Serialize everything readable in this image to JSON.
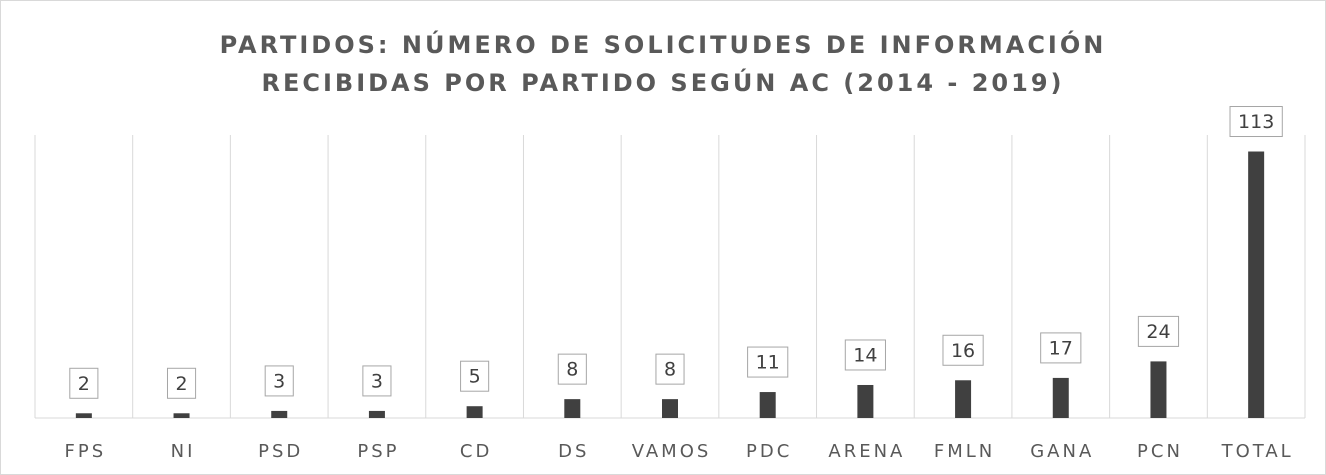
{
  "chart_data": {
    "type": "bar",
    "title": [
      "PARTIDOS: NÚMERO DE SOLICITUDES DE INFORMACIÓN",
      "RECIBIDAS POR PARTIDO SEGÚN AC (2014 - 2019)"
    ],
    "categories": [
      "FPS",
      "NI",
      "PSD",
      "PSP",
      "CD",
      "DS",
      "VAMOS",
      "PDC",
      "ARENA",
      "FMLN",
      "GANA",
      "PCN",
      "TOTAL"
    ],
    "values": [
      2,
      2,
      3,
      3,
      5,
      8,
      8,
      11,
      14,
      16,
      17,
      24,
      113
    ],
    "color": "#404040",
    "ylim": [
      0,
      120
    ]
  }
}
